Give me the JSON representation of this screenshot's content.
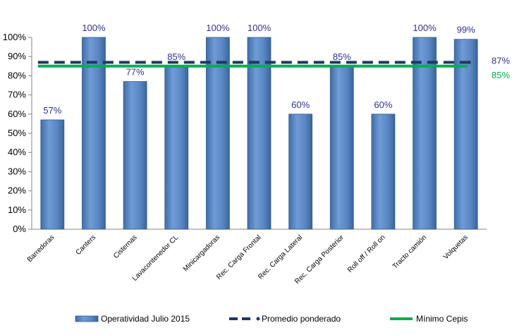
{
  "chart_data": {
    "type": "bar",
    "categories": [
      "Barredoras",
      "Canters",
      "Cisternas",
      "Lavacontenedor CL",
      "Minicargadoras",
      "Rec. Carga Frontal",
      "Rec. Carga Lateral",
      "Rec. Carga Posterior",
      "Roll off / Roll on",
      "Tracto camión",
      "Volquetas"
    ],
    "series": [
      {
        "name": "Operatividad Julio 2015",
        "values": [
          57,
          100,
          77,
          85,
          100,
          100,
          60,
          85,
          60,
          100,
          99
        ],
        "labels": [
          "57%",
          "100%",
          "77%",
          "85%",
          "100%",
          "100%",
          "60%",
          "85%",
          "60%",
          "100%",
          "99%"
        ],
        "color": "#4f81bd"
      }
    ],
    "lines": [
      {
        "name": "Promedio ponderado",
        "value": 87,
        "label": "87%",
        "color": "#1f3864",
        "style": "dashed"
      },
      {
        "name": "Mínimo Cepis",
        "value": 85,
        "label": "85%",
        "color": "#00b050",
        "style": "solid"
      }
    ],
    "y_ticks": [
      "0%",
      "10%",
      "20%",
      "30%",
      "40%",
      "50%",
      "60%",
      "70%",
      "80%",
      "90%",
      "100%"
    ],
    "ylim": [
      0,
      100
    ],
    "legend_position": "bottom",
    "grid": false
  }
}
